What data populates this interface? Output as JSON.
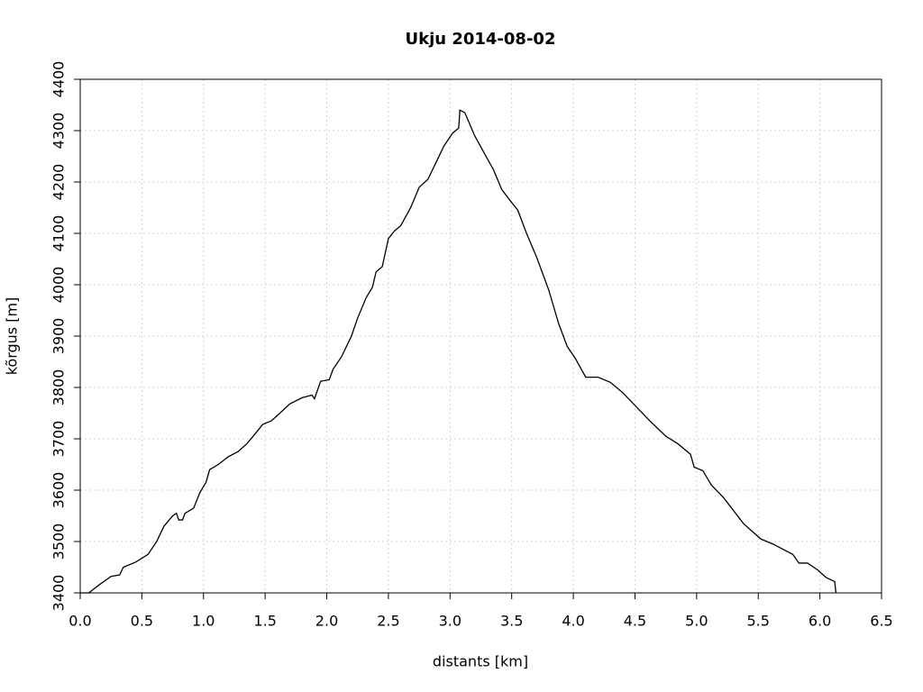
{
  "chart_data": {
    "type": "line",
    "title": "Ukju 2014-08-02",
    "x_label": "distants [km]",
    "y_label": "kõrgus [m]",
    "xlim": [
      0,
      6.5
    ],
    "ylim": [
      3400,
      4400
    ],
    "xticks": [
      {
        "value": 0,
        "label": "0.0"
      },
      {
        "value": 0.5,
        "label": "0.5"
      },
      {
        "value": 1,
        "label": "1.0"
      },
      {
        "value": 1.5,
        "label": "1.5"
      },
      {
        "value": 2,
        "label": "2.0"
      },
      {
        "value": 2.5,
        "label": "2.5"
      },
      {
        "value": 3,
        "label": "3.0"
      },
      {
        "value": 3.5,
        "label": "3.5"
      },
      {
        "value": 4,
        "label": "4.0"
      },
      {
        "value": 4.5,
        "label": "4.5"
      },
      {
        "value": 5,
        "label": "5.0"
      },
      {
        "value": 5.5,
        "label": "5.5"
      },
      {
        "value": 6,
        "label": "6.0"
      },
      {
        "value": 6.5,
        "label": "6.5"
      }
    ],
    "yticks": [
      3400,
      3500,
      3600,
      3700,
      3800,
      3900,
      4000,
      4100,
      4200,
      4300,
      4400
    ],
    "grid": true,
    "series": [
      {
        "color": "#000000",
        "x": [
          0.0,
          0.07,
          0.15,
          0.25,
          0.32,
          0.35,
          0.45,
          0.55,
          0.62,
          0.68,
          0.75,
          0.78,
          0.8,
          0.83,
          0.85,
          0.92,
          0.97,
          1.02,
          1.05,
          1.12,
          1.2,
          1.28,
          1.35,
          1.42,
          1.48,
          1.55,
          1.62,
          1.7,
          1.8,
          1.88,
          1.9,
          1.95,
          2.02,
          2.05,
          2.12,
          2.2,
          2.25,
          2.32,
          2.37,
          2.4,
          2.45,
          2.5,
          2.55,
          2.6,
          2.68,
          2.75,
          2.82,
          2.88,
          2.95,
          3.02,
          3.07,
          3.08,
          3.12,
          3.2,
          3.28,
          3.35,
          3.42,
          3.5,
          3.55,
          3.62,
          3.7,
          3.8,
          3.88,
          3.95,
          4.02,
          4.05,
          4.1,
          4.2,
          4.3,
          4.4,
          4.5,
          4.62,
          4.75,
          4.85,
          4.95,
          4.98,
          5.05,
          5.12,
          5.22,
          5.3,
          5.38,
          5.45,
          5.52,
          5.62,
          5.7,
          5.78,
          5.83,
          5.9,
          5.98,
          6.05,
          6.12,
          6.13
        ],
        "values": [
          3400,
          3400,
          3415,
          3432,
          3435,
          3450,
          3460,
          3475,
          3500,
          3530,
          3550,
          3555,
          3542,
          3542,
          3555,
          3565,
          3595,
          3615,
          3640,
          3650,
          3665,
          3675,
          3690,
          3710,
          3728,
          3735,
          3750,
          3768,
          3780,
          3785,
          3778,
          3812,
          3815,
          3835,
          3860,
          3900,
          3935,
          3975,
          3995,
          4025,
          4035,
          4090,
          4105,
          4115,
          4150,
          4190,
          4205,
          4235,
          4270,
          4295,
          4305,
          4340,
          4335,
          4290,
          4255,
          4225,
          4185,
          4160,
          4145,
          4100,
          4055,
          3990,
          3925,
          3880,
          3855,
          3842,
          3820,
          3820,
          3810,
          3790,
          3765,
          3735,
          3705,
          3690,
          3670,
          3645,
          3638,
          3610,
          3585,
          3560,
          3535,
          3520,
          3505,
          3495,
          3485,
          3475,
          3458,
          3458,
          3445,
          3430,
          3422,
          3400
        ]
      }
    ]
  }
}
